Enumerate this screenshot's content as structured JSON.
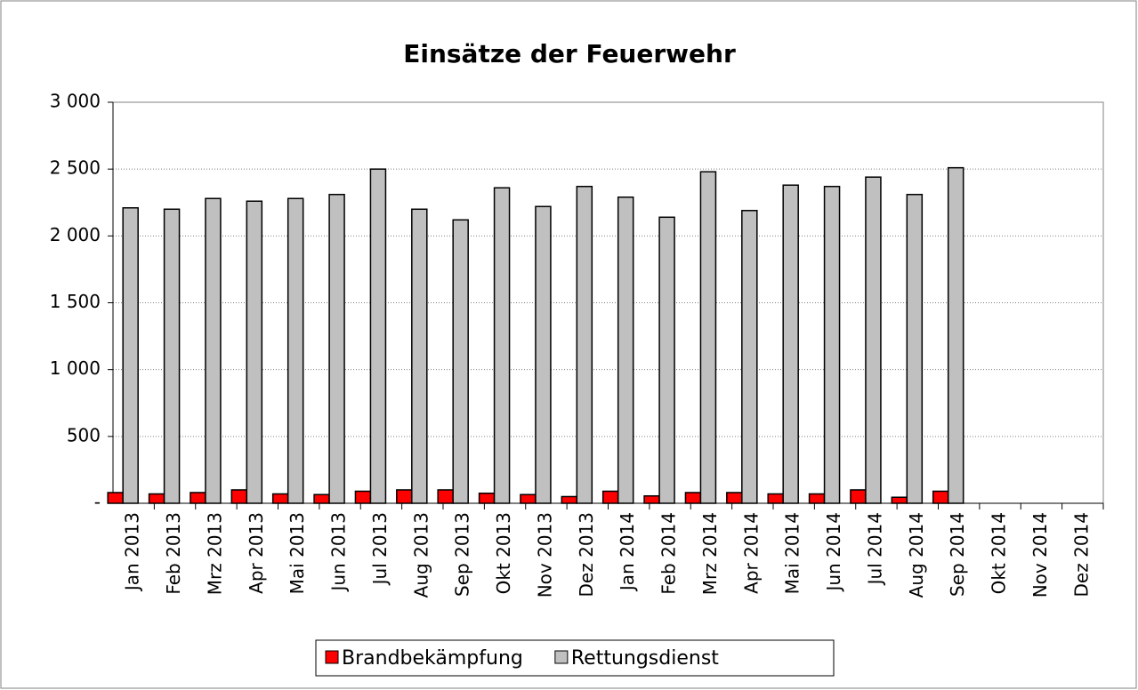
{
  "chart_data": {
    "type": "bar",
    "title": "Einsätze der Feuerwehr",
    "categories": [
      "Jan 2013",
      "Feb 2013",
      "Mrz 2013",
      "Apr 2013",
      "Mai 2013",
      "Jun 2013",
      "Jul 2013",
      "Aug 2013",
      "Sep 2013",
      "Okt 2013",
      "Nov 2013",
      "Dez 2013",
      "Jan 2014",
      "Feb 2014",
      "Mrz 2014",
      "Apr 2014",
      "Mai 2014",
      "Jun 2014",
      "Jul 2014",
      "Aug 2014",
      "Sep 2014",
      "Okt 2014",
      "Nov 2014",
      "Dez 2014"
    ],
    "series": [
      {
        "name": "Brandbekämpfung",
        "color": "#ff0000",
        "values": [
          80,
          70,
          80,
          100,
          70,
          65,
          90,
          100,
          100,
          75,
          65,
          50,
          90,
          55,
          80,
          80,
          70,
          70,
          100,
          45,
          90,
          null,
          null,
          null
        ]
      },
      {
        "name": "Rettungsdienst",
        "color": "#c0c0c0",
        "values": [
          2210,
          2200,
          2280,
          2260,
          2280,
          2310,
          2500,
          2200,
          2120,
          2360,
          2220,
          2370,
          2290,
          2140,
          2480,
          2190,
          2380,
          2370,
          2440,
          2310,
          2510,
          null,
          null,
          null
        ]
      }
    ],
    "ylim": [
      0,
      3000
    ],
    "yticks": [
      {
        "value": 0,
        "label": "-"
      },
      500,
      {
        "value": 1000,
        "label": "1 000"
      },
      {
        "value": 1500,
        "label": "1 500"
      },
      {
        "value": 2000,
        "label": "2 000"
      },
      {
        "value": 2500,
        "label": "2 500"
      },
      {
        "value": 3000,
        "label": "3 000"
      }
    ],
    "grid": true,
    "legend": "bottom"
  }
}
